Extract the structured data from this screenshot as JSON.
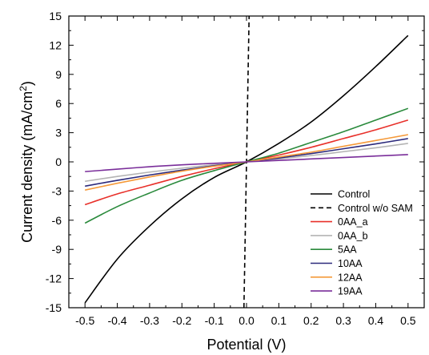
{
  "chart_data": {
    "type": "line",
    "xlabel": "Potential (V)",
    "ylabel": "Current density (mA/cm²)",
    "ylabel_parts": {
      "main": "Current density (mA/cm",
      "sup": "2",
      "close": ")"
    },
    "xlim": [
      -0.55,
      0.55
    ],
    "ylim": [
      -15,
      15
    ],
    "x_ticks": [
      -0.5,
      -0.4,
      -0.3,
      -0.2,
      -0.1,
      0.0,
      0.1,
      0.2,
      0.3,
      0.4,
      0.5
    ],
    "x_tick_labels": [
      "-0.5",
      "-0.4",
      "-0.3",
      "-0.2",
      "-0.1",
      "0.0",
      "0.1",
      "0.2",
      "0.3",
      "0.4",
      "0.5"
    ],
    "y_ticks": [
      -15,
      -12,
      -9,
      -6,
      -3,
      0,
      3,
      6,
      9,
      12,
      15
    ],
    "y_tick_labels": [
      "-15",
      "-12",
      "-9",
      "-6",
      "-3",
      "0",
      "3",
      "6",
      "9",
      "12",
      "15"
    ],
    "grid": false,
    "legend_position": "bottom-right",
    "x": [
      -0.5,
      -0.4,
      -0.3,
      -0.2,
      -0.1,
      0.0,
      0.1,
      0.2,
      0.3,
      0.4,
      0.5
    ],
    "series": [
      {
        "name": "Control",
        "color": "#000000",
        "dash": "solid",
        "values": [
          -14.5,
          -10.0,
          -6.6,
          -3.8,
          -1.6,
          0.0,
          1.9,
          4.1,
          6.8,
          9.8,
          13.0
        ]
      },
      {
        "name": "Control w/o SAM",
        "color": "#000000",
        "dash": "dashed",
        "x": [
          -0.008,
          0.008
        ],
        "values": [
          -15.0,
          15.0
        ]
      },
      {
        "name": "0AA_a",
        "color": "#e8302a",
        "dash": "solid",
        "values": [
          -4.4,
          -3.3,
          -2.4,
          -1.5,
          -0.7,
          0.0,
          0.7,
          1.5,
          2.4,
          3.3,
          4.3
        ]
      },
      {
        "name": "0AA_b",
        "color": "#b4b4b4",
        "dash": "solid",
        "values": [
          -2.0,
          -1.5,
          -1.05,
          -0.65,
          -0.3,
          0.0,
          0.3,
          0.65,
          1.05,
          1.45,
          1.9
        ]
      },
      {
        "name": "5AA",
        "color": "#2a8a3c",
        "dash": "solid",
        "values": [
          -6.3,
          -4.6,
          -3.2,
          -1.9,
          -0.9,
          0.0,
          0.9,
          2.0,
          3.1,
          4.3,
          5.5
        ]
      },
      {
        "name": "10AA",
        "color": "#2c2a7c",
        "dash": "solid",
        "values": [
          -2.5,
          -1.9,
          -1.35,
          -0.85,
          -0.4,
          0.0,
          0.4,
          0.85,
          1.35,
          1.85,
          2.4
        ]
      },
      {
        "name": "12AA",
        "color": "#f59a3a",
        "dash": "solid",
        "values": [
          -2.9,
          -2.2,
          -1.55,
          -0.95,
          -0.45,
          0.0,
          0.5,
          1.0,
          1.6,
          2.2,
          2.8
        ]
      },
      {
        "name": "19AA",
        "color": "#7a2e9a",
        "dash": "solid",
        "values": [
          -1.0,
          -0.75,
          -0.5,
          -0.3,
          -0.15,
          0.0,
          0.15,
          0.3,
          0.45,
          0.6,
          0.75
        ]
      }
    ]
  }
}
